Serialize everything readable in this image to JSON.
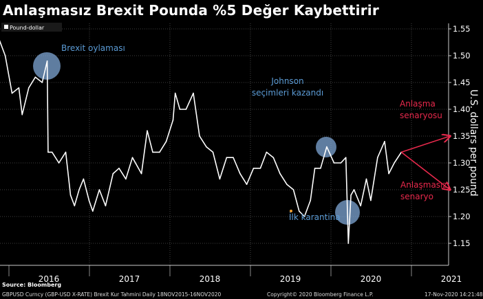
{
  "chart_data": {
    "type": "line",
    "title": "Anlaşmasız Brexit Pounda %5 Değer Kaybettirir",
    "legend": [
      "Pound-dollar"
    ],
    "legend_placement": "top-left",
    "ylabel": "U.S. dollars per pound",
    "y_axis_side": "right",
    "ylim": [
      1.13,
      1.57
    ],
    "yticks": [
      "1.15",
      "1.20",
      "1.25",
      "1.30",
      "1.35",
      "1.40",
      "1.45",
      "1.50",
      "1.55"
    ],
    "xticks": [
      "2016",
      "2017",
      "2018",
      "2019",
      "2020",
      "2021"
    ],
    "grid": true,
    "colors": {
      "line": "#ffffff",
      "annotation_blue": "#5b9bd5",
      "annotation_red": "#e8294c",
      "circle_fill": "#7fa7d6"
    },
    "series": [
      {
        "name": "Pound-dollar",
        "points": [
          [
            "2015-11-18",
            1.53
          ],
          [
            "2015-12-15",
            1.5
          ],
          [
            "2016-01-15",
            1.43
          ],
          [
            "2016-02-15",
            1.44
          ],
          [
            "2016-03-01",
            1.39
          ],
          [
            "2016-03-31",
            1.44
          ],
          [
            "2016-04-30",
            1.46
          ],
          [
            "2016-05-31",
            1.45
          ],
          [
            "2016-06-23",
            1.49
          ],
          [
            "2016-06-27",
            1.32
          ],
          [
            "2016-07-15",
            1.32
          ],
          [
            "2016-08-15",
            1.3
          ],
          [
            "2016-09-15",
            1.32
          ],
          [
            "2016-10-07",
            1.24
          ],
          [
            "2016-10-25",
            1.22
          ],
          [
            "2016-11-15",
            1.25
          ],
          [
            "2016-12-05",
            1.27
          ],
          [
            "2016-12-30",
            1.23
          ],
          [
            "2017-01-16",
            1.21
          ],
          [
            "2017-02-15",
            1.25
          ],
          [
            "2017-03-15",
            1.22
          ],
          [
            "2017-04-18",
            1.28
          ],
          [
            "2017-05-15",
            1.29
          ],
          [
            "2017-06-15",
            1.27
          ],
          [
            "2017-07-15",
            1.31
          ],
          [
            "2017-08-25",
            1.28
          ],
          [
            "2017-09-20",
            1.36
          ],
          [
            "2017-10-15",
            1.32
          ],
          [
            "2017-11-15",
            1.32
          ],
          [
            "2017-12-15",
            1.34
          ],
          [
            "2018-01-15",
            1.38
          ],
          [
            "2018-01-25",
            1.43
          ],
          [
            "2018-02-15",
            1.4
          ],
          [
            "2018-03-15",
            1.4
          ],
          [
            "2018-04-17",
            1.43
          ],
          [
            "2018-05-15",
            1.35
          ],
          [
            "2018-06-15",
            1.33
          ],
          [
            "2018-07-15",
            1.32
          ],
          [
            "2018-08-15",
            1.27
          ],
          [
            "2018-09-15",
            1.31
          ],
          [
            "2018-10-15",
            1.31
          ],
          [
            "2018-11-15",
            1.28
          ],
          [
            "2018-12-15",
            1.26
          ],
          [
            "2019-01-15",
            1.29
          ],
          [
            "2019-02-15",
            1.29
          ],
          [
            "2019-03-15",
            1.32
          ],
          [
            "2019-04-15",
            1.31
          ],
          [
            "2019-05-15",
            1.28
          ],
          [
            "2019-06-15",
            1.26
          ],
          [
            "2019-07-15",
            1.25
          ],
          [
            "2019-08-10",
            1.21
          ],
          [
            "2019-09-03",
            1.2
          ],
          [
            "2019-09-30",
            1.23
          ],
          [
            "2019-10-20",
            1.29
          ],
          [
            "2019-11-15",
            1.29
          ],
          [
            "2019-12-13",
            1.33
          ],
          [
            "2020-01-15",
            1.3
          ],
          [
            "2020-02-15",
            1.3
          ],
          [
            "2020-03-09",
            1.31
          ],
          [
            "2020-03-20",
            1.15
          ],
          [
            "2020-04-01",
            1.24
          ],
          [
            "2020-04-15",
            1.25
          ],
          [
            "2020-05-15",
            1.22
          ],
          [
            "2020-06-10",
            1.27
          ],
          [
            "2020-06-30",
            1.23
          ],
          [
            "2020-07-31",
            1.31
          ],
          [
            "2020-09-01",
            1.34
          ],
          [
            "2020-09-20",
            1.28
          ],
          [
            "2020-10-15",
            1.3
          ],
          [
            "2020-11-16",
            1.32
          ]
        ]
      }
    ],
    "annotations": [
      {
        "text": "Brexit oylaması",
        "date": "2016-06-23",
        "value": 1.48,
        "color": "blue",
        "circle": true
      },
      {
        "text": "Johnson\nseçimleri kazandı",
        "date": "2019-12-13",
        "value": 1.33,
        "color": "blue",
        "circle": true
      },
      {
        "text": "İlk karantina",
        "date": "2020-03-20",
        "value": 1.21,
        "color": "blue",
        "circle": true
      },
      {
        "text": "Anlaşma\nsenaryosu",
        "target": 1.35,
        "color": "red"
      },
      {
        "text": "Anlaşmasız\nsenaryo",
        "target": 1.25,
        "color": "red"
      }
    ],
    "scenario_arrows": {
      "from": [
        "2020-11-16",
        1.32
      ],
      "to": [
        1.35,
        1.25
      ]
    }
  },
  "footer": {
    "source": "Source: Bloomberg",
    "ticker": "GBPUSD Curncy (GBP-USD X-RATE) Brexit Kur Tahmini  Daily 18NOV2015-16NOV2020",
    "copyright": "Copyright© 2020 Bloomberg Finance L.P.",
    "timestamp": "17-Nov-2020 14:21:48"
  }
}
